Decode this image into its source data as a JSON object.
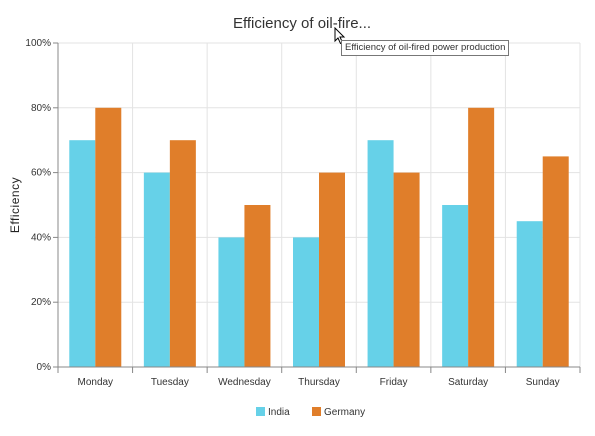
{
  "chart_data": {
    "type": "bar",
    "title": "Efficiency of oil-fire...",
    "tooltip": "Efficiency of oil-fired power production",
    "xlabel": "",
    "ylabel": "Efficiency",
    "ylim": [
      0,
      100
    ],
    "yticks": [
      "0%",
      "20%",
      "40%",
      "60%",
      "80%",
      "100%"
    ],
    "y_unit": "%",
    "categories": [
      "Monday",
      "Tuesday",
      "Wednesday",
      "Thursday",
      "Friday",
      "Saturday",
      "Sunday"
    ],
    "series": [
      {
        "name": "India",
        "color": "#66d1e8",
        "values": [
          70,
          60,
          40,
          40,
          70,
          50,
          45
        ]
      },
      {
        "name": "Germany",
        "color": "#e07e2a",
        "values": [
          80,
          70,
          50,
          60,
          60,
          80,
          65
        ]
      }
    ],
    "grid": true,
    "legend": "bottom-center"
  }
}
